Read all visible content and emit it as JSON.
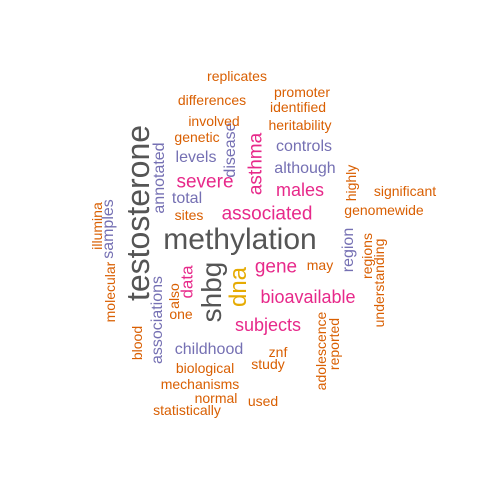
{
  "palette": {
    "orange": "#d95f02",
    "purple": "#7570b3",
    "magenta": "#e7298a",
    "gold": "#e6ab02",
    "gray": "#555555"
  },
  "words": [
    {
      "text": "methylation",
      "color": "gray"
    },
    {
      "text": "testosterone",
      "color": "gray"
    },
    {
      "text": "shbg",
      "color": "gray"
    },
    {
      "text": "dna",
      "color": "gold"
    },
    {
      "text": "asthma",
      "color": "magenta"
    },
    {
      "text": "severe",
      "color": "magenta"
    },
    {
      "text": "associated",
      "color": "magenta"
    },
    {
      "text": "gene",
      "color": "magenta"
    },
    {
      "text": "bioavailable",
      "color": "magenta"
    },
    {
      "text": "subjects",
      "color": "magenta"
    },
    {
      "text": "males",
      "color": "magenta"
    },
    {
      "text": "data",
      "color": "magenta"
    },
    {
      "text": "controls",
      "color": "purple"
    },
    {
      "text": "although",
      "color": "purple"
    },
    {
      "text": "levels",
      "color": "purple"
    },
    {
      "text": "total",
      "color": "purple"
    },
    {
      "text": "annotated",
      "color": "purple"
    },
    {
      "text": "disease",
      "color": "purple"
    },
    {
      "text": "samples",
      "color": "purple"
    },
    {
      "text": "associations",
      "color": "purple"
    },
    {
      "text": "childhood",
      "color": "purple"
    },
    {
      "text": "region",
      "color": "purple"
    },
    {
      "text": "replicates",
      "color": "orange"
    },
    {
      "text": "promoter",
      "color": "orange"
    },
    {
      "text": "differences",
      "color": "orange"
    },
    {
      "text": "identified",
      "color": "orange"
    },
    {
      "text": "involved",
      "color": "orange"
    },
    {
      "text": "heritability",
      "color": "orange"
    },
    {
      "text": "genetic",
      "color": "orange"
    },
    {
      "text": "highly",
      "color": "orange"
    },
    {
      "text": "significant",
      "color": "orange"
    },
    {
      "text": "genomewide",
      "color": "orange"
    },
    {
      "text": "sites",
      "color": "orange"
    },
    {
      "text": "illumina",
      "color": "orange"
    },
    {
      "text": "regions",
      "color": "orange"
    },
    {
      "text": "may",
      "color": "orange"
    },
    {
      "text": "understanding",
      "color": "orange"
    },
    {
      "text": "molecular",
      "color": "orange"
    },
    {
      "text": "also",
      "color": "orange"
    },
    {
      "text": "one",
      "color": "orange"
    },
    {
      "text": "blood",
      "color": "orange"
    },
    {
      "text": "adolescence",
      "color": "orange"
    },
    {
      "text": "reported",
      "color": "orange"
    },
    {
      "text": "znf",
      "color": "orange"
    },
    {
      "text": "study",
      "color": "orange"
    },
    {
      "text": "biological",
      "color": "orange"
    },
    {
      "text": "mechanisms",
      "color": "orange"
    },
    {
      "text": "normal",
      "color": "orange"
    },
    {
      "text": "used",
      "color": "orange"
    },
    {
      "text": "statistically",
      "color": "orange"
    }
  ]
}
